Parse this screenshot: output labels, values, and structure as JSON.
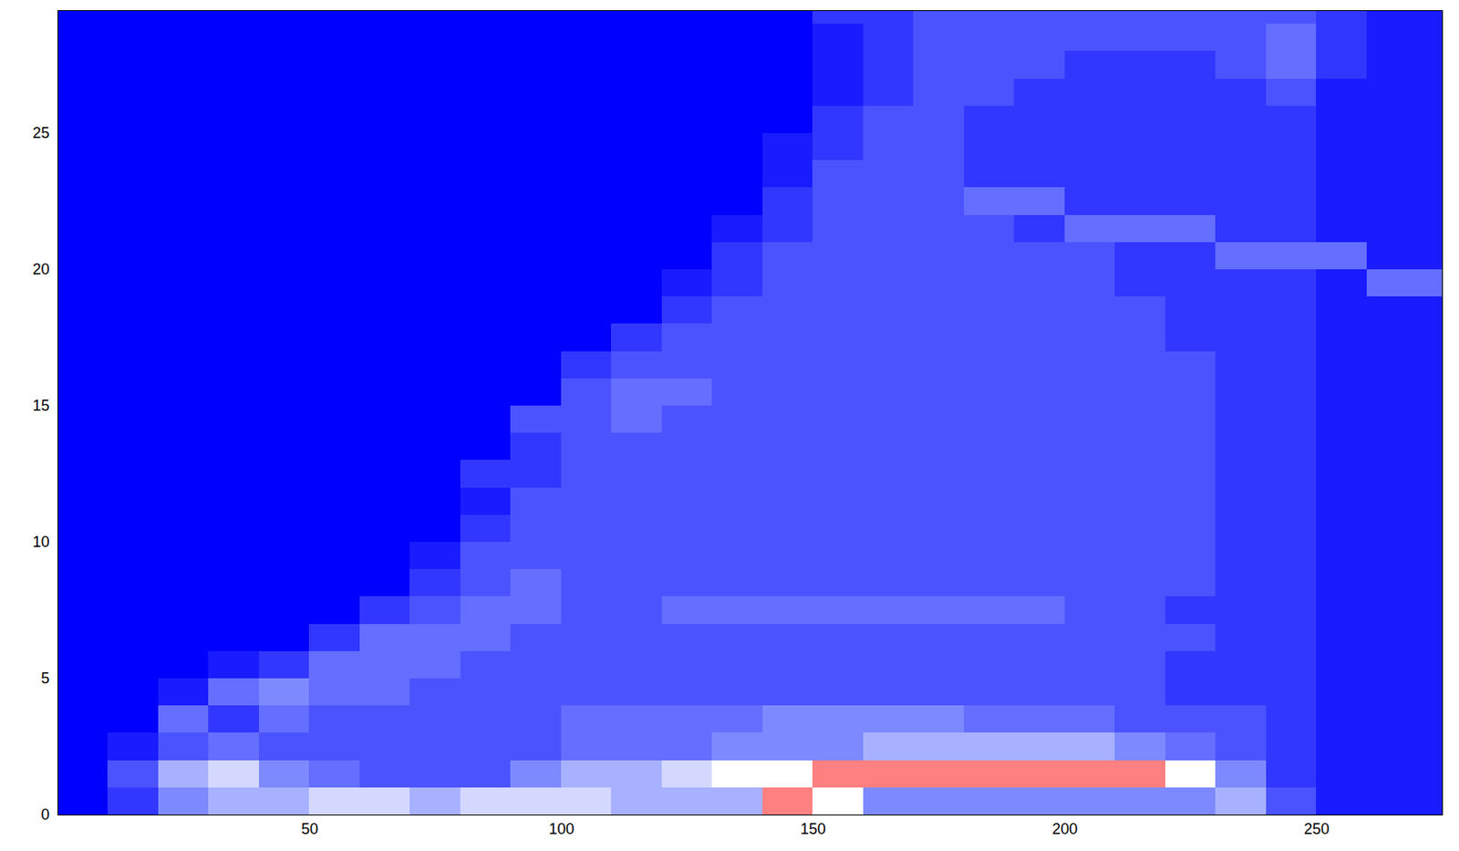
{
  "chart_data": {
    "type": "heatmap",
    "xlim": [
      0,
      275
    ],
    "ylim": [
      0,
      29.5
    ],
    "xticks": [
      50,
      100,
      150,
      200,
      250
    ],
    "yticks": [
      0,
      5,
      10,
      15,
      20,
      25
    ],
    "zlim": [
      0,
      10
    ],
    "x_edges": [
      0,
      10,
      20,
      30,
      40,
      50,
      60,
      70,
      80,
      90,
      100,
      110,
      120,
      130,
      140,
      150,
      160,
      170,
      180,
      190,
      200,
      210,
      220,
      230,
      240,
      250,
      260,
      270,
      280
    ],
    "y_edges": [
      0,
      1,
      2,
      3,
      4,
      5,
      6,
      7,
      8,
      9,
      10,
      11,
      12,
      13,
      14,
      15,
      16,
      17,
      18,
      19,
      20,
      21,
      22,
      23,
      24,
      25,
      26,
      27,
      28,
      29,
      30
    ],
    "values": [
      [
        0,
        2,
        5,
        6,
        6,
        7,
        7,
        6,
        7,
        7,
        7,
        6,
        6,
        6,
        9,
        8,
        5,
        5,
        5,
        5,
        5,
        5,
        5,
        6,
        3,
        1,
        1,
        1
      ],
      [
        0,
        3,
        6,
        7,
        5,
        4,
        3,
        3,
        3,
        5,
        6,
        6,
        7,
        8,
        8,
        9,
        9,
        9,
        9,
        9,
        9,
        9,
        8,
        5,
        2,
        1,
        1,
        1
      ],
      [
        0,
        1,
        3,
        4,
        3,
        3,
        3,
        3,
        3,
        3,
        4,
        4,
        4,
        5,
        5,
        5,
        6,
        6,
        6,
        6,
        6,
        5,
        4,
        3,
        2,
        1,
        1,
        1
      ],
      [
        0,
        0,
        4,
        2,
        4,
        3,
        3,
        3,
        3,
        3,
        4,
        4,
        4,
        4,
        5,
        5,
        5,
        5,
        4,
        4,
        4,
        3,
        3,
        3,
        2,
        1,
        1,
        1
      ],
      [
        0,
        0,
        1,
        4,
        5,
        4,
        4,
        3,
        3,
        3,
        3,
        3,
        3,
        3,
        3,
        3,
        3,
        3,
        3,
        3,
        3,
        3,
        2,
        2,
        2,
        1,
        1,
        1
      ],
      [
        0,
        0,
        0,
        1,
        2,
        4,
        4,
        4,
        3,
        3,
        3,
        3,
        3,
        3,
        3,
        3,
        3,
        3,
        3,
        3,
        3,
        3,
        2,
        2,
        2,
        1,
        1,
        1
      ],
      [
        0,
        0,
        0,
        0,
        0,
        2,
        4,
        4,
        4,
        3,
        3,
        3,
        3,
        3,
        3,
        3,
        3,
        3,
        3,
        3,
        3,
        3,
        3,
        2,
        2,
        1,
        1,
        1
      ],
      [
        0,
        0,
        0,
        0,
        0,
        0,
        2,
        3,
        4,
        4,
        3,
        3,
        4,
        4,
        4,
        4,
        4,
        4,
        4,
        4,
        3,
        3,
        2,
        2,
        2,
        1,
        1,
        1
      ],
      [
        0,
        0,
        0,
        0,
        0,
        0,
        0,
        2,
        3,
        4,
        3,
        3,
        3,
        3,
        3,
        3,
        3,
        3,
        3,
        3,
        3,
        3,
        3,
        2,
        2,
        1,
        1,
        1
      ],
      [
        0,
        0,
        0,
        0,
        0,
        0,
        0,
        1,
        3,
        3,
        3,
        3,
        3,
        3,
        3,
        3,
        3,
        3,
        3,
        3,
        3,
        3,
        3,
        2,
        2,
        1,
        1,
        1
      ],
      [
        0,
        0,
        0,
        0,
        0,
        0,
        0,
        0,
        2,
        3,
        3,
        3,
        3,
        3,
        3,
        3,
        3,
        3,
        3,
        3,
        3,
        3,
        3,
        2,
        2,
        1,
        1,
        1
      ],
      [
        0,
        0,
        0,
        0,
        0,
        0,
        0,
        0,
        1,
        3,
        3,
        3,
        3,
        3,
        3,
        3,
        3,
        3,
        3,
        3,
        3,
        3,
        3,
        2,
        2,
        1,
        1,
        1
      ],
      [
        0,
        0,
        0,
        0,
        0,
        0,
        0,
        0,
        2,
        2,
        3,
        3,
        3,
        3,
        3,
        3,
        3,
        3,
        3,
        3,
        3,
        3,
        3,
        2,
        2,
        1,
        1,
        1
      ],
      [
        0,
        0,
        0,
        0,
        0,
        0,
        0,
        0,
        0,
        2,
        3,
        3,
        3,
        3,
        3,
        3,
        3,
        3,
        3,
        3,
        3,
        3,
        3,
        2,
        2,
        1,
        1,
        1
      ],
      [
        0,
        0,
        0,
        0,
        0,
        0,
        0,
        0,
        0,
        3,
        3,
        4,
        3,
        3,
        3,
        3,
        3,
        3,
        3,
        3,
        3,
        3,
        3,
        2,
        2,
        1,
        1,
        1
      ],
      [
        0,
        0,
        0,
        0,
        0,
        0,
        0,
        0,
        0,
        0,
        3,
        4,
        4,
        3,
        3,
        3,
        3,
        3,
        3,
        3,
        3,
        3,
        3,
        2,
        2,
        1,
        1,
        1
      ],
      [
        0,
        0,
        0,
        0,
        0,
        0,
        0,
        0,
        0,
        0,
        2,
        3,
        3,
        3,
        3,
        3,
        3,
        3,
        3,
        3,
        3,
        3,
        3,
        2,
        2,
        1,
        1,
        1
      ],
      [
        0,
        0,
        0,
        0,
        0,
        0,
        0,
        0,
        0,
        0,
        0,
        2,
        3,
        3,
        3,
        3,
        3,
        3,
        3,
        3,
        3,
        3,
        2,
        2,
        2,
        1,
        1,
        1
      ],
      [
        0,
        0,
        0,
        0,
        0,
        0,
        0,
        0,
        0,
        0,
        0,
        0,
        2,
        3,
        3,
        3,
        3,
        3,
        3,
        3,
        3,
        3,
        2,
        2,
        2,
        1,
        1,
        1
      ],
      [
        0,
        0,
        0,
        0,
        0,
        0,
        0,
        0,
        0,
        0,
        0,
        0,
        1,
        2,
        3,
        3,
        3,
        3,
        3,
        3,
        3,
        2,
        2,
        2,
        2,
        1,
        4,
        4
      ],
      [
        0,
        0,
        0,
        0,
        0,
        0,
        0,
        0,
        0,
        0,
        0,
        0,
        0,
        2,
        3,
        3,
        3,
        3,
        3,
        3,
        3,
        2,
        2,
        4,
        4,
        4,
        1,
        1
      ],
      [
        0,
        0,
        0,
        0,
        0,
        0,
        0,
        0,
        0,
        0,
        0,
        0,
        0,
        1,
        2,
        3,
        3,
        3,
        3,
        2,
        4,
        4,
        4,
        2,
        2,
        1,
        1,
        1
      ],
      [
        0,
        0,
        0,
        0,
        0,
        0,
        0,
        0,
        0,
        0,
        0,
        0,
        0,
        0,
        2,
        3,
        3,
        3,
        4,
        4,
        2,
        2,
        2,
        2,
        2,
        1,
        1,
        1
      ],
      [
        0,
        0,
        0,
        0,
        0,
        0,
        0,
        0,
        0,
        0,
        0,
        0,
        0,
        0,
        1,
        3,
        3,
        3,
        2,
        2,
        2,
        2,
        2,
        2,
        2,
        1,
        1,
        1
      ],
      [
        0,
        0,
        0,
        0,
        0,
        0,
        0,
        0,
        0,
        0,
        0,
        0,
        0,
        0,
        1,
        2,
        3,
        3,
        2,
        2,
        2,
        2,
        2,
        2,
        2,
        1,
        1,
        1
      ],
      [
        0,
        0,
        0,
        0,
        0,
        0,
        0,
        0,
        0,
        0,
        0,
        0,
        0,
        0,
        0,
        2,
        3,
        3,
        2,
        2,
        2,
        2,
        2,
        2,
        2,
        1,
        1,
        1
      ],
      [
        0,
        0,
        0,
        0,
        0,
        0,
        0,
        0,
        0,
        0,
        0,
        0,
        0,
        0,
        0,
        1,
        2,
        3,
        3,
        2,
        2,
        2,
        2,
        2,
        3,
        1,
        1,
        1
      ],
      [
        0,
        0,
        0,
        0,
        0,
        0,
        0,
        0,
        0,
        0,
        0,
        0,
        0,
        0,
        0,
        1,
        2,
        3,
        3,
        3,
        2,
        2,
        2,
        3,
        4,
        2,
        1,
        1
      ],
      [
        0,
        0,
        0,
        0,
        0,
        0,
        0,
        0,
        0,
        0,
        0,
        0,
        0,
        0,
        0,
        1,
        2,
        3,
        3,
        3,
        3,
        3,
        3,
        3,
        4,
        2,
        1,
        1
      ],
      [
        0,
        0,
        0,
        0,
        0,
        0,
        0,
        0,
        0,
        0,
        0,
        0,
        0,
        0,
        0,
        2,
        2,
        3,
        3,
        3,
        3,
        3,
        3,
        3,
        3,
        2,
        1,
        1
      ]
    ]
  }
}
